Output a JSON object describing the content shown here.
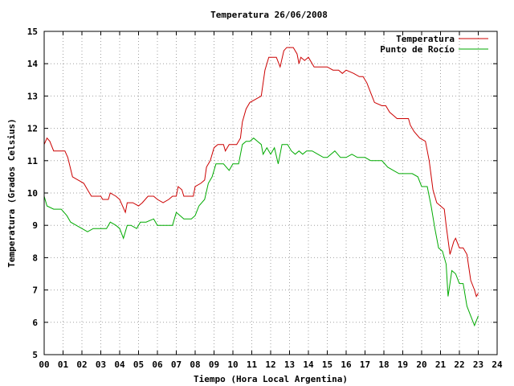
{
  "chart_data": {
    "type": "line",
    "title": "Temperatura 26/06/2008",
    "xlabel": "Tiempo (Hora Local Argentina)",
    "ylabel": "Temperatura (Grados Celsius)",
    "xlim": [
      0,
      24
    ],
    "ylim": [
      5,
      15
    ],
    "x_ticks": [
      "00",
      "01",
      "02",
      "03",
      "04",
      "05",
      "06",
      "07",
      "08",
      "09",
      "10",
      "11",
      "12",
      "13",
      "14",
      "15",
      "16",
      "17",
      "18",
      "19",
      "20",
      "21",
      "22",
      "23",
      "24"
    ],
    "y_ticks": [
      "5",
      "6",
      "7",
      "8",
      "9",
      "10",
      "11",
      "12",
      "13",
      "14",
      "15"
    ],
    "grid": true,
    "legend_position": "top-right",
    "series": [
      {
        "name": "Temperatura",
        "color": "#cc0000",
        "points": [
          [
            0.0,
            11.5
          ],
          [
            0.15,
            11.7
          ],
          [
            0.3,
            11.6
          ],
          [
            0.5,
            11.3
          ],
          [
            0.8,
            11.3
          ],
          [
            1.1,
            11.3
          ],
          [
            1.25,
            11.1
          ],
          [
            1.5,
            10.5
          ],
          [
            1.8,
            10.4
          ],
          [
            2.1,
            10.3
          ],
          [
            2.3,
            10.1
          ],
          [
            2.5,
            9.9
          ],
          [
            2.8,
            9.9
          ],
          [
            3.0,
            9.9
          ],
          [
            3.1,
            9.8
          ],
          [
            3.4,
            9.8
          ],
          [
            3.5,
            10.0
          ],
          [
            3.8,
            9.9
          ],
          [
            4.0,
            9.8
          ],
          [
            4.3,
            9.4
          ],
          [
            4.4,
            9.7
          ],
          [
            4.7,
            9.7
          ],
          [
            5.0,
            9.6
          ],
          [
            5.2,
            9.7
          ],
          [
            5.5,
            9.9
          ],
          [
            5.8,
            9.9
          ],
          [
            6.0,
            9.8
          ],
          [
            6.3,
            9.7
          ],
          [
            6.6,
            9.8
          ],
          [
            6.8,
            9.9
          ],
          [
            7.0,
            9.9
          ],
          [
            7.1,
            10.2
          ],
          [
            7.3,
            10.1
          ],
          [
            7.4,
            9.9
          ],
          [
            7.6,
            9.9
          ],
          [
            7.9,
            9.9
          ],
          [
            8.0,
            10.2
          ],
          [
            8.3,
            10.3
          ],
          [
            8.5,
            10.4
          ],
          [
            8.6,
            10.8
          ],
          [
            8.8,
            11.0
          ],
          [
            9.0,
            11.4
          ],
          [
            9.2,
            11.5
          ],
          [
            9.5,
            11.5
          ],
          [
            9.6,
            11.3
          ],
          [
            9.8,
            11.5
          ],
          [
            10.2,
            11.5
          ],
          [
            10.4,
            11.7
          ],
          [
            10.5,
            12.2
          ],
          [
            10.7,
            12.6
          ],
          [
            10.9,
            12.8
          ],
          [
            11.2,
            12.9
          ],
          [
            11.5,
            13.0
          ],
          [
            11.7,
            13.8
          ],
          [
            11.9,
            14.2
          ],
          [
            12.3,
            14.2
          ],
          [
            12.5,
            13.9
          ],
          [
            12.7,
            14.4
          ],
          [
            12.85,
            14.5
          ],
          [
            13.2,
            14.5
          ],
          [
            13.4,
            14.3
          ],
          [
            13.5,
            14.0
          ],
          [
            13.6,
            14.2
          ],
          [
            13.8,
            14.1
          ],
          [
            14.0,
            14.2
          ],
          [
            14.3,
            13.9
          ],
          [
            14.5,
            13.9
          ],
          [
            14.8,
            13.9
          ],
          [
            15.0,
            13.9
          ],
          [
            15.3,
            13.8
          ],
          [
            15.6,
            13.8
          ],
          [
            15.8,
            13.7
          ],
          [
            16.0,
            13.8
          ],
          [
            16.4,
            13.7
          ],
          [
            16.7,
            13.6
          ],
          [
            16.9,
            13.6
          ],
          [
            17.1,
            13.4
          ],
          [
            17.3,
            13.1
          ],
          [
            17.5,
            12.8
          ],
          [
            17.9,
            12.7
          ],
          [
            18.1,
            12.7
          ],
          [
            18.3,
            12.5
          ],
          [
            18.5,
            12.4
          ],
          [
            18.7,
            12.3
          ],
          [
            19.0,
            12.3
          ],
          [
            19.3,
            12.3
          ],
          [
            19.4,
            12.1
          ],
          [
            19.6,
            11.9
          ],
          [
            19.9,
            11.7
          ],
          [
            20.2,
            11.6
          ],
          [
            20.4,
            11.0
          ],
          [
            20.6,
            10.1
          ],
          [
            20.8,
            9.7
          ],
          [
            21.0,
            9.6
          ],
          [
            21.2,
            9.5
          ],
          [
            21.3,
            9.0
          ],
          [
            21.5,
            8.1
          ],
          [
            21.7,
            8.5
          ],
          [
            21.8,
            8.6
          ],
          [
            22.0,
            8.3
          ],
          [
            22.2,
            8.3
          ],
          [
            22.4,
            8.1
          ],
          [
            22.6,
            7.3
          ],
          [
            22.8,
            7.0
          ],
          [
            22.9,
            6.8
          ],
          [
            23.0,
            6.9
          ]
        ]
      },
      {
        "name": "Punto de Rocío",
        "color": "#00aa00",
        "points": [
          [
            0.0,
            9.9
          ],
          [
            0.15,
            9.6
          ],
          [
            0.5,
            9.5
          ],
          [
            0.9,
            9.5
          ],
          [
            1.2,
            9.3
          ],
          [
            1.4,
            9.1
          ],
          [
            1.7,
            9.0
          ],
          [
            2.0,
            8.9
          ],
          [
            2.3,
            8.8
          ],
          [
            2.6,
            8.9
          ],
          [
            3.0,
            8.9
          ],
          [
            3.3,
            8.9
          ],
          [
            3.5,
            9.1
          ],
          [
            3.8,
            9.0
          ],
          [
            4.0,
            8.9
          ],
          [
            4.2,
            8.6
          ],
          [
            4.4,
            9.0
          ],
          [
            4.6,
            9.0
          ],
          [
            4.9,
            8.9
          ],
          [
            5.1,
            9.1
          ],
          [
            5.4,
            9.1
          ],
          [
            5.8,
            9.2
          ],
          [
            6.0,
            9.0
          ],
          [
            6.4,
            9.0
          ],
          [
            6.8,
            9.0
          ],
          [
            7.0,
            9.4
          ],
          [
            7.2,
            9.3
          ],
          [
            7.4,
            9.2
          ],
          [
            7.8,
            9.2
          ],
          [
            8.0,
            9.3
          ],
          [
            8.2,
            9.6
          ],
          [
            8.5,
            9.8
          ],
          [
            8.7,
            10.3
          ],
          [
            8.9,
            10.5
          ],
          [
            9.1,
            10.9
          ],
          [
            9.5,
            10.9
          ],
          [
            9.8,
            10.7
          ],
          [
            10.0,
            10.9
          ],
          [
            10.3,
            10.9
          ],
          [
            10.5,
            11.5
          ],
          [
            10.7,
            11.6
          ],
          [
            10.9,
            11.6
          ],
          [
            11.1,
            11.7
          ],
          [
            11.3,
            11.6
          ],
          [
            11.5,
            11.5
          ],
          [
            11.6,
            11.2
          ],
          [
            11.8,
            11.4
          ],
          [
            12.0,
            11.2
          ],
          [
            12.2,
            11.4
          ],
          [
            12.4,
            10.9
          ],
          [
            12.6,
            11.5
          ],
          [
            12.9,
            11.5
          ],
          [
            13.1,
            11.3
          ],
          [
            13.3,
            11.2
          ],
          [
            13.5,
            11.3
          ],
          [
            13.7,
            11.2
          ],
          [
            13.9,
            11.3
          ],
          [
            14.2,
            11.3
          ],
          [
            14.5,
            11.2
          ],
          [
            14.8,
            11.1
          ],
          [
            15.0,
            11.1
          ],
          [
            15.4,
            11.3
          ],
          [
            15.7,
            11.1
          ],
          [
            16.0,
            11.1
          ],
          [
            16.3,
            11.2
          ],
          [
            16.6,
            11.1
          ],
          [
            17.0,
            11.1
          ],
          [
            17.3,
            11.0
          ],
          [
            17.6,
            11.0
          ],
          [
            17.9,
            11.0
          ],
          [
            18.2,
            10.8
          ],
          [
            18.5,
            10.7
          ],
          [
            18.8,
            10.6
          ],
          [
            19.1,
            10.6
          ],
          [
            19.5,
            10.6
          ],
          [
            19.8,
            10.5
          ],
          [
            20.0,
            10.2
          ],
          [
            20.3,
            10.2
          ],
          [
            20.5,
            9.6
          ],
          [
            20.7,
            8.9
          ],
          [
            20.9,
            8.3
          ],
          [
            21.1,
            8.2
          ],
          [
            21.3,
            7.8
          ],
          [
            21.4,
            6.8
          ],
          [
            21.6,
            7.6
          ],
          [
            21.8,
            7.5
          ],
          [
            22.0,
            7.2
          ],
          [
            22.2,
            7.2
          ],
          [
            22.4,
            6.5
          ],
          [
            22.6,
            6.2
          ],
          [
            22.8,
            5.9
          ],
          [
            23.0,
            6.2
          ]
        ]
      }
    ]
  }
}
